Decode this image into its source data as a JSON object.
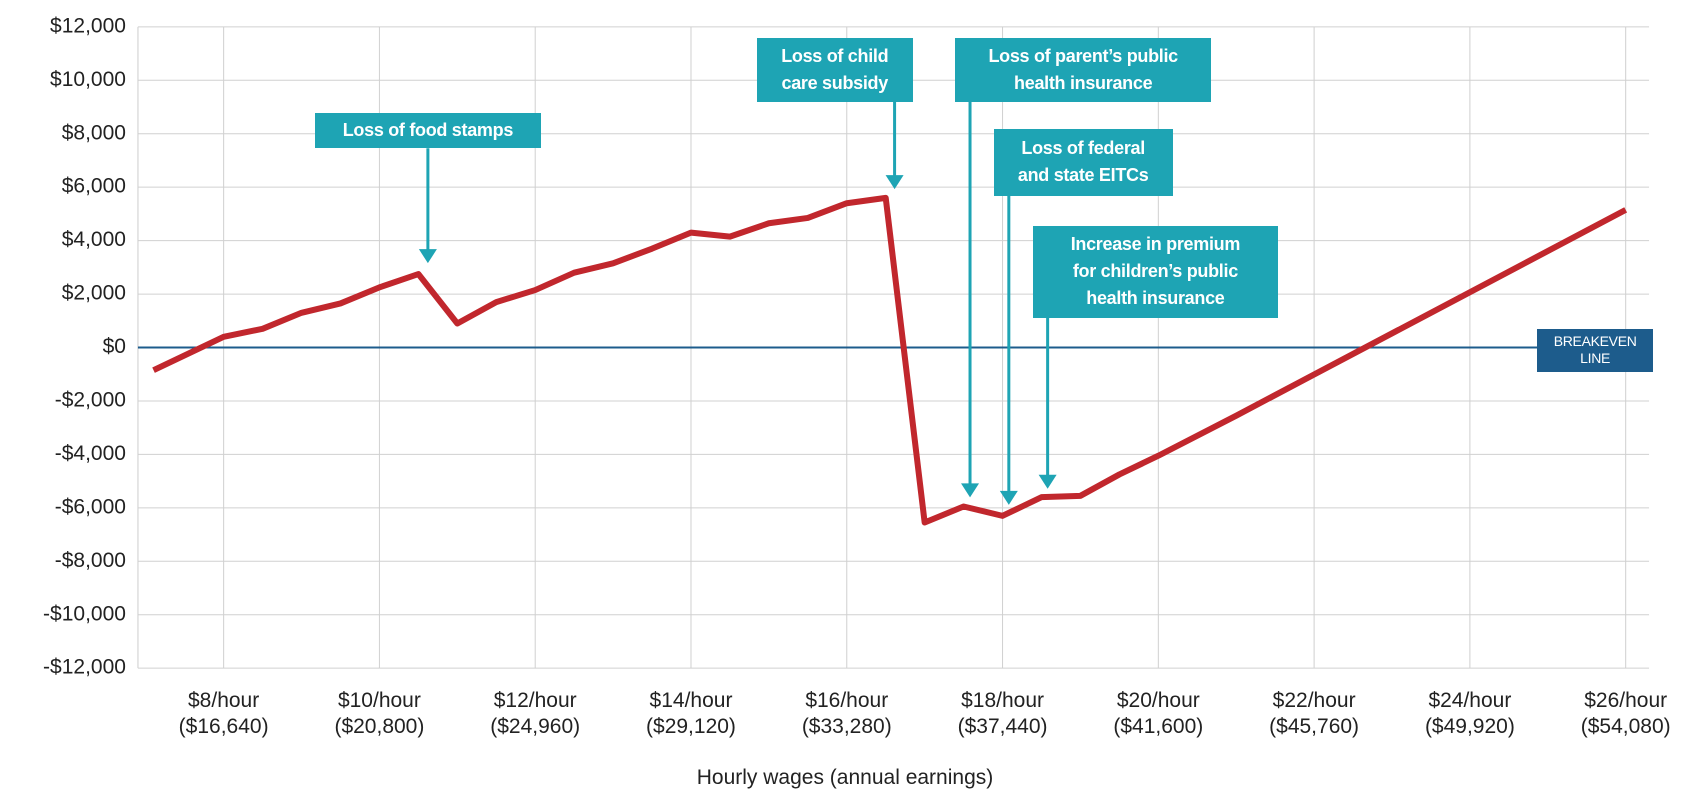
{
  "chart_data": {
    "type": "line",
    "x_label": "Hourly wages (annual earnings)",
    "x": [
      7.1,
      8,
      8.5,
      9,
      9.5,
      10,
      10.5,
      11,
      11.5,
      12,
      12.5,
      13,
      13.5,
      14,
      14.5,
      15,
      15.5,
      16,
      16.5,
      17,
      17.5,
      18,
      18.5,
      19,
      19.5,
      20,
      21,
      26
    ],
    "values": [
      -850,
      400,
      700,
      1300,
      1650,
      2250,
      2750,
      900,
      1700,
      2150,
      2800,
      3150,
      3700,
      4300,
      4150,
      4650,
      4850,
      5400,
      5600,
      -6550,
      -5950,
      -6300,
      -5600,
      -5550,
      -4750,
      -4050,
      -2550,
      5150
    ],
    "color": "#c1272d",
    "xlim": [
      6.9,
      26.3
    ],
    "ylim": [
      -12000,
      12000
    ],
    "xticks": [
      {
        "value": 8,
        "label": "$8/hour\n($16,640)"
      },
      {
        "value": 10,
        "label": "$10/hour\n($20,800)"
      },
      {
        "value": 12,
        "label": "$12/hour\n($24,960)"
      },
      {
        "value": 14,
        "label": "$14/hour\n($29,120)"
      },
      {
        "value": 16,
        "label": "$16/hour\n($33,280)"
      },
      {
        "value": 18,
        "label": "$18/hour\n($37,440)"
      },
      {
        "value": 20,
        "label": "$20/hour\n($41,600)"
      },
      {
        "value": 22,
        "label": "$22/hour\n($45,760)"
      },
      {
        "value": 24,
        "label": "$24/hour\n($49,920)"
      },
      {
        "value": 26,
        "label": "$26/hour\n($54,080)"
      }
    ],
    "yticks": [
      {
        "value": 12000,
        "label": "$12,000"
      },
      {
        "value": 10000,
        "label": "$10,000"
      },
      {
        "value": 8000,
        "label": "$8,000"
      },
      {
        "value": 6000,
        "label": "$6,000"
      },
      {
        "value": 4000,
        "label": "$4,000"
      },
      {
        "value": 2000,
        "label": "$2,000"
      },
      {
        "value": 0,
        "label": "$0"
      },
      {
        "value": -2000,
        "label": "-$2,000"
      },
      {
        "value": -4000,
        "label": "-$4,000"
      },
      {
        "value": -6000,
        "label": "-$6,000"
      },
      {
        "value": -8000,
        "label": "-$8,000"
      },
      {
        "value": -10000,
        "label": "-$10,000"
      },
      {
        "value": -12000,
        "label": "-$12,000"
      }
    ],
    "grid": true,
    "reference_line": {
      "label": "BREAKEVEN\nLINE",
      "color": "#1d5c8c"
    },
    "annotation_color": "#1ea4b4",
    "annotations": [
      "Loss of food stamps",
      "Loss of child\ncare subsidy",
      "Loss of parent’s public\nhealth insurance",
      "Loss of federal\nand state EITCs",
      "Increase in premium\nfor children’s public\nhealth insurance"
    ]
  }
}
